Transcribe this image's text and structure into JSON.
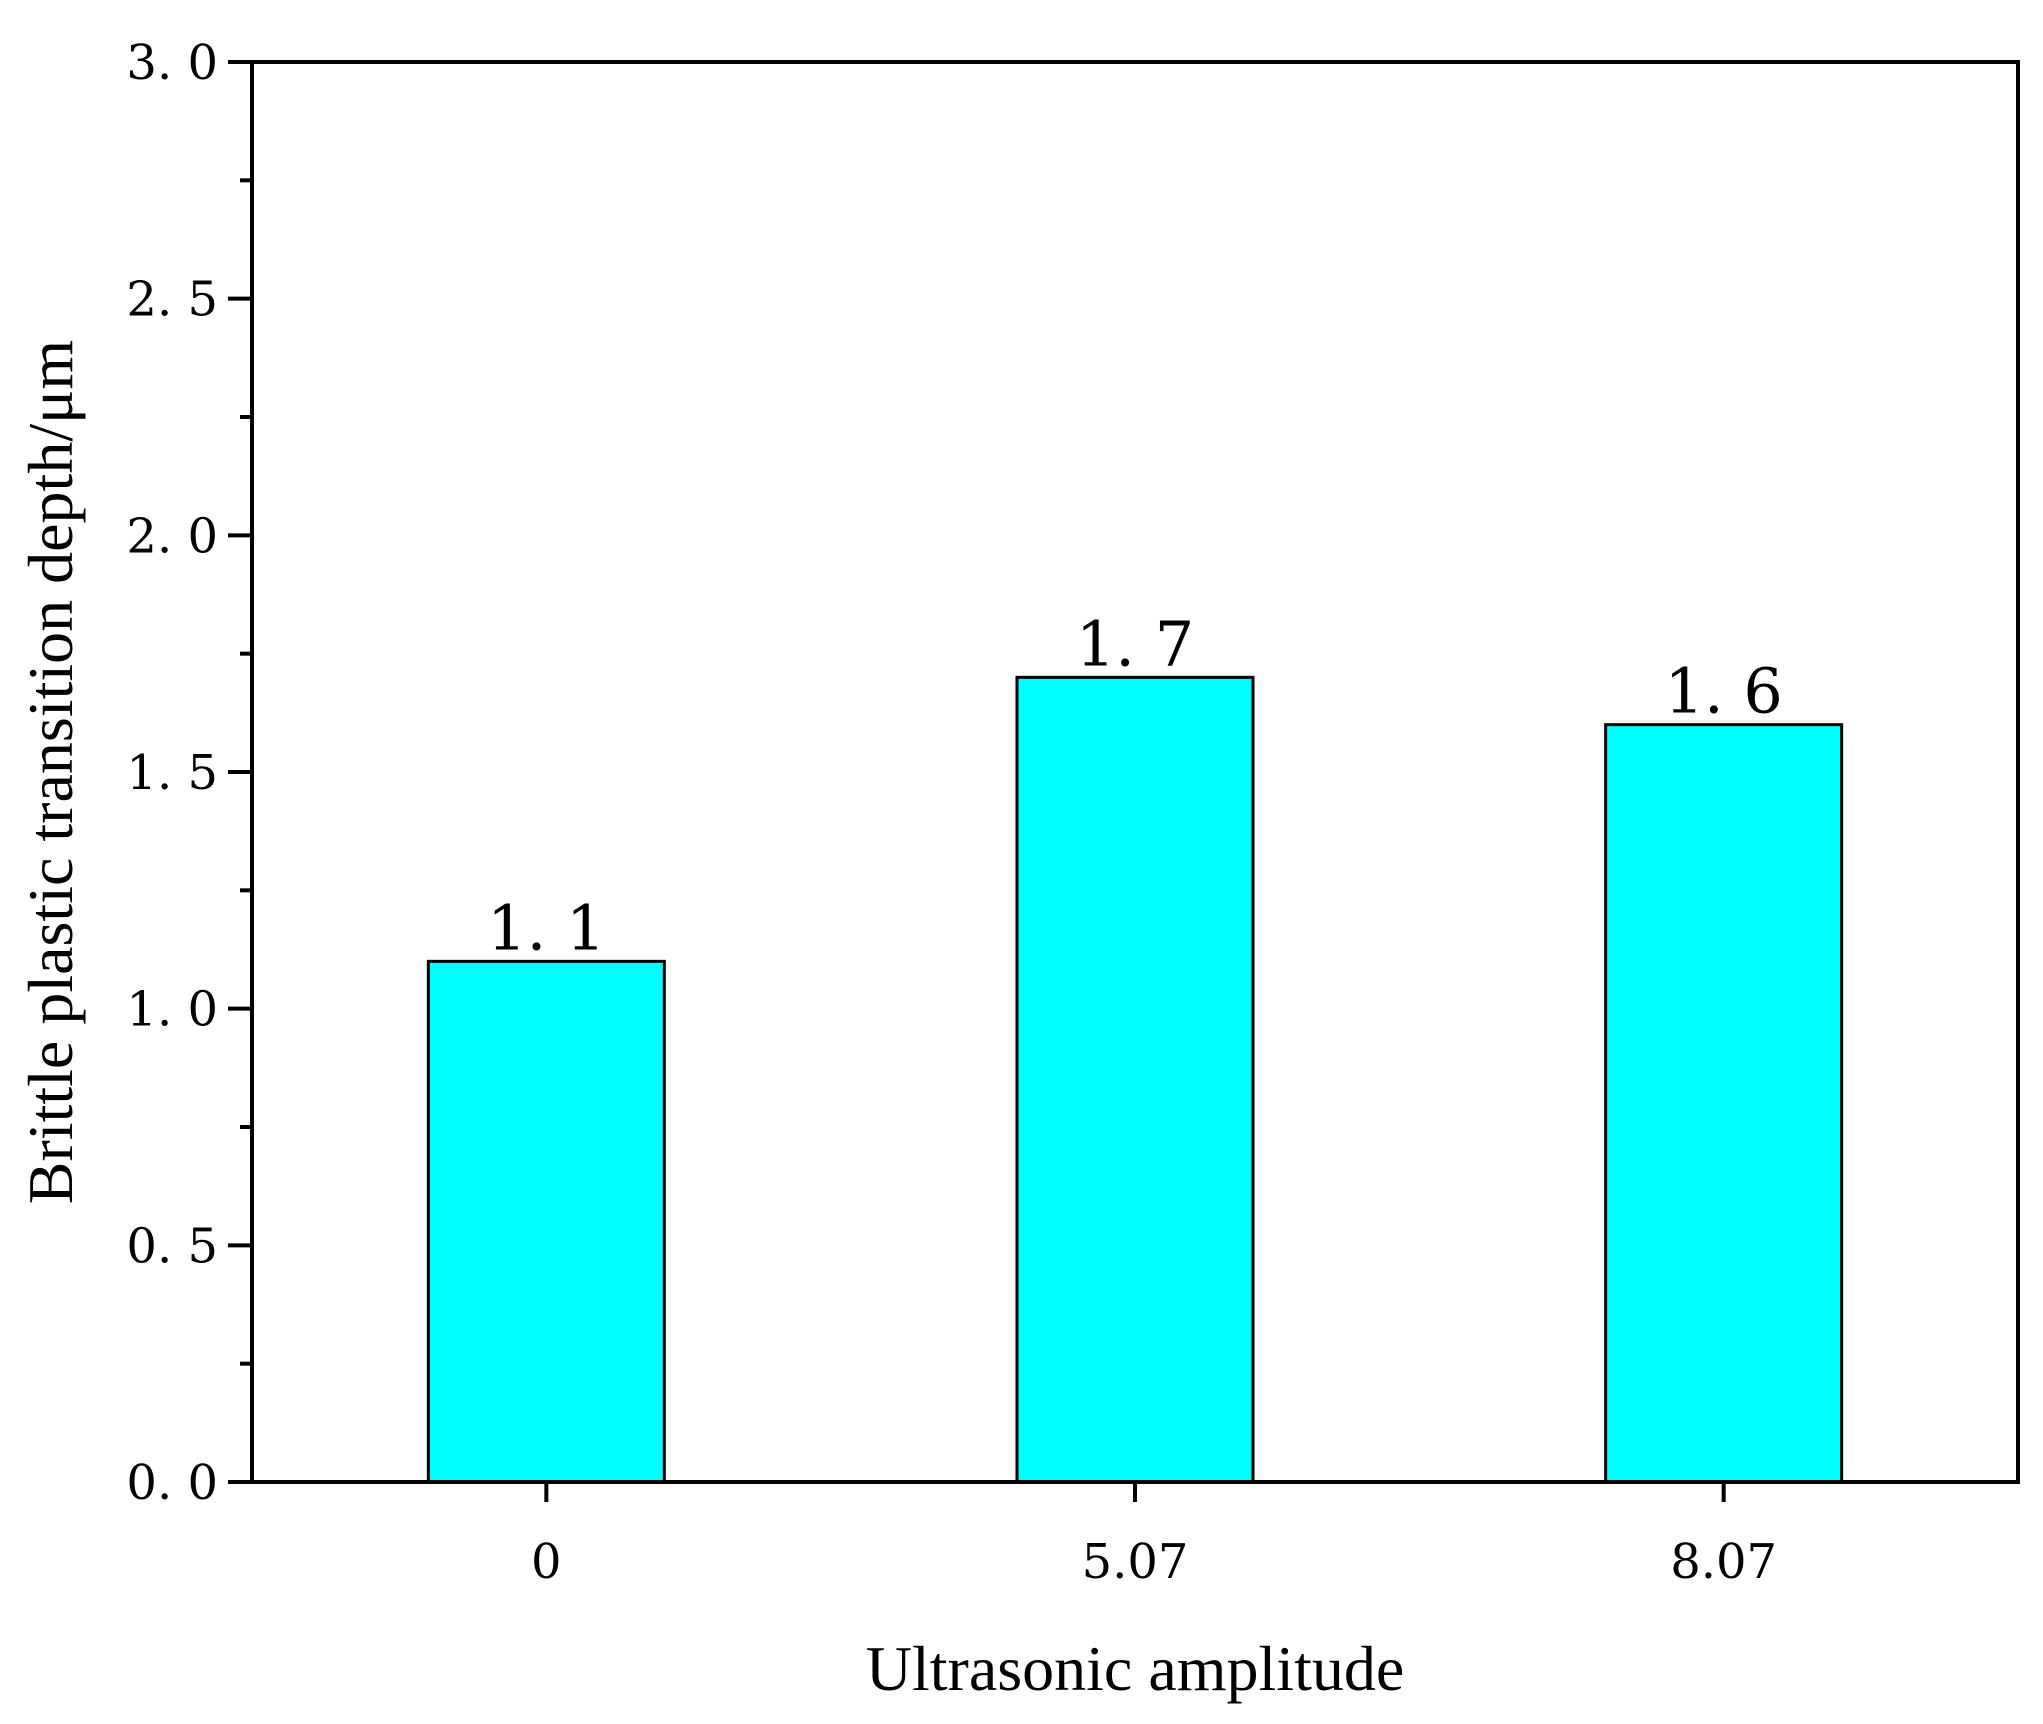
{
  "chart_data": {
    "type": "bar",
    "categories": [
      "0",
      "5.07",
      "8.07"
    ],
    "values": [
      1.1,
      1.7,
      1.6
    ],
    "data_labels": [
      "1. 1",
      "1. 7",
      "1. 6"
    ],
    "title": "",
    "xlabel": "Ultrasonic amplitude",
    "ylabel": "Brittle plastic transition depth/μm",
    "ylim": [
      0,
      3.0
    ],
    "yticks": [
      0,
      0.5,
      1.0,
      1.5,
      2.0,
      2.5,
      3.0
    ],
    "ytick_labels": [
      "0. 0",
      "0. 5",
      "1. 0",
      "1. 5",
      "2. 0",
      "2. 5",
      "3. 0"
    ],
    "grid": false,
    "legend": "none",
    "bar_color": "#00FFFF",
    "edge_color": "#000000"
  }
}
